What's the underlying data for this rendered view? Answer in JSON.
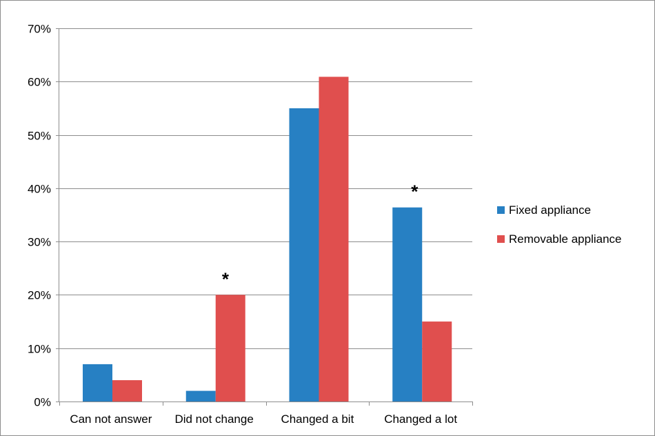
{
  "chart_data": {
    "type": "bar",
    "title": "",
    "xlabel": "",
    "ylabel": "",
    "categories": [
      "Can not answer",
      "Did not change",
      "Changed a bit",
      "Changed a lot"
    ],
    "series": [
      {
        "name": "Fixed appliance",
        "color": "#2780c3",
        "values": [
          7,
          2,
          55,
          36.4
        ]
      },
      {
        "name": "Removable appliance",
        "color": "#e04f4e",
        "values": [
          4,
          20,
          60.9,
          15
        ]
      }
    ],
    "ylim": [
      0,
      70
    ],
    "yticks": [
      0,
      10,
      20,
      30,
      40,
      50,
      60,
      70
    ],
    "ytick_labels": [
      "0%",
      "10%",
      "20%",
      "30%",
      "40%",
      "50%",
      "60%",
      "70%"
    ],
    "grid": true,
    "legend": "right",
    "annotations": [
      {
        "text": "*",
        "category": "Did not change",
        "series": "Removable appliance"
      },
      {
        "text": "*",
        "category": "Changed a lot",
        "series": "Fixed appliance"
      }
    ]
  }
}
